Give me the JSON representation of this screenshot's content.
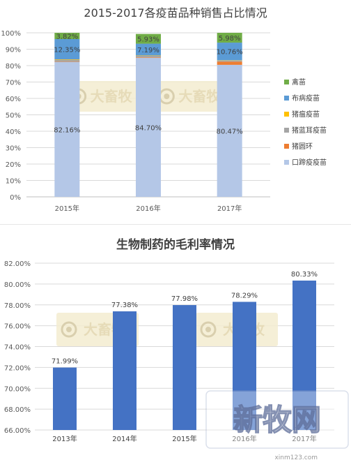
{
  "chart_data": [
    {
      "type": "bar",
      "stacked": true,
      "title": "2015-2017各疫苗品种销售占比情况",
      "categories": [
        "2015年",
        "2016年",
        "2017年"
      ],
      "ylim": [
        0,
        100
      ],
      "yticks": [
        "0%",
        "10%",
        "20%",
        "30%",
        "40%",
        "50%",
        "60%",
        "70%",
        "80%",
        "90%",
        "100%"
      ],
      "grid": true,
      "legend_position": "right",
      "series": [
        {
          "name": "口蹄疫疫苗",
          "color": "#b4c7e7",
          "values": [
            82.16,
            84.7,
            80.47
          ],
          "labels": [
            "82.16%",
            "84.70%",
            "80.47%"
          ]
        },
        {
          "name": "猪圆环",
          "color": "#ed7d31",
          "values": [
            0.2,
            0.3,
            2.0
          ],
          "labels": [
            "",
            "",
            ""
          ]
        },
        {
          "name": "猪蓝耳疫苗",
          "color": "#a5a5a5",
          "values": [
            1.2,
            1.0,
            0.6
          ],
          "labels": [
            "",
            "",
            ""
          ]
        },
        {
          "name": "猪瘟疫苗",
          "color": "#ffc000",
          "values": [
            0.27,
            0.18,
            0.19
          ],
          "labels": [
            "",
            "",
            ""
          ]
        },
        {
          "name": "布病疫苗",
          "color": "#5b9bd5",
          "values": [
            12.35,
            7.19,
            10.76
          ],
          "labels": [
            "12.35%",
            "7.19%",
            "10.76%"
          ]
        },
        {
          "name": "禽苗",
          "color": "#70ad47",
          "values": [
            3.82,
            5.93,
            5.98
          ],
          "labels": [
            "3.82%",
            "5.93%",
            "5.98%"
          ]
        }
      ]
    },
    {
      "type": "bar",
      "title": "生物制药的毛利率情况",
      "categories": [
        "2013年",
        "2014年",
        "2015年",
        "2016年",
        "2017年"
      ],
      "values": [
        71.99,
        77.38,
        77.98,
        78.29,
        80.33
      ],
      "labels": [
        "71.99%",
        "77.38%",
        "77.98%",
        "78.29%",
        "80.33%"
      ],
      "ylim": [
        66,
        82
      ],
      "yticks": [
        "66.00%",
        "68.00%",
        "70.00%",
        "72.00%",
        "74.00%",
        "76.00%",
        "78.00%",
        "80.00%",
        "82.00%"
      ],
      "color": "#4472c4",
      "grid": true
    }
  ],
  "watermark": {
    "text": "大畜牧",
    "brand": "新牧网",
    "url": "xinm123.com"
  }
}
